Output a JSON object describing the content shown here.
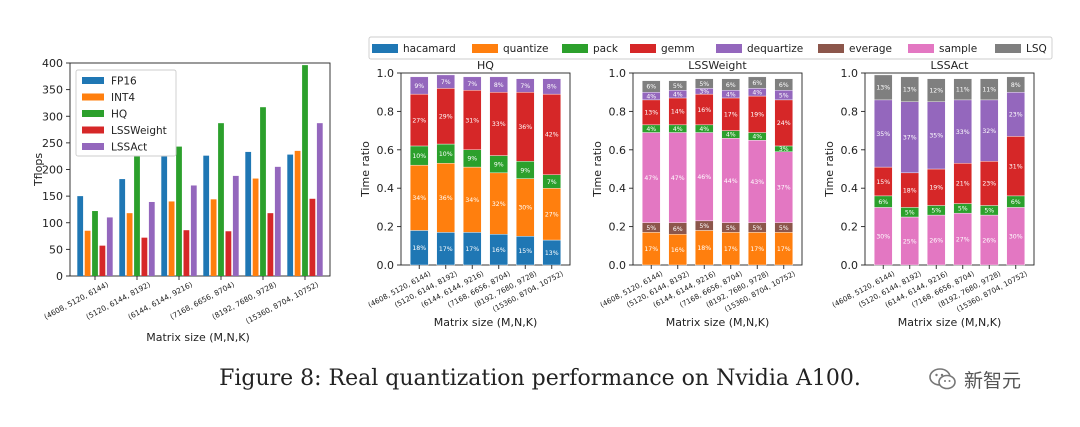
{
  "caption": "Figure 8: Real quantization performance on Nvidia A100.",
  "watermark": {
    "text": "新智元",
    "icon": "wechat-icon"
  },
  "chart_data": [
    {
      "type": "bar",
      "ylabel": "Tflops",
      "xlabel": "Matrix size (M,N,K)",
      "ylim": [
        0,
        400
      ],
      "yticks": [
        "0",
        "50",
        "100",
        "150",
        "200",
        "250",
        "300",
        "350",
        "400"
      ],
      "categories": [
        "(4608, 5120, 6144)",
        "(5120, 6144, 8192)",
        "(6144, 6144, 9216)",
        "(7168, 6656, 8704)",
        "(8192, 7680, 9728)",
        "(15360, 8704, 10752)"
      ],
      "legend_position": "upper-left",
      "series": [
        {
          "name": "FP16",
          "color": "#1f77b4",
          "values": [
            150,
            182,
            236,
            226,
            233,
            228
          ]
        },
        {
          "name": "INT4",
          "color": "#ff7f0e",
          "values": [
            85,
            118,
            140,
            144,
            183,
            235
          ]
        },
        {
          "name": "HQ",
          "color": "#2ca02c",
          "values": [
            122,
            243,
            243,
            287,
            317,
            396
          ]
        },
        {
          "name": "LSSWeight",
          "color": "#d62728",
          "values": [
            57,
            72,
            86,
            84,
            118,
            145
          ]
        },
        {
          "name": "LSSAct",
          "color": "#9467bd",
          "values": [
            110,
            139,
            170,
            188,
            205,
            287
          ]
        }
      ]
    },
    {
      "type": "stacked-bar",
      "legend": [
        {
          "name": "hacamard",
          "color": "#1f77b4"
        },
        {
          "name": "quantize",
          "color": "#ff7f0e"
        },
        {
          "name": "pack",
          "color": "#2ca02c"
        },
        {
          "name": "gemm",
          "color": "#d62728"
        },
        {
          "name": "dequartize",
          "color": "#9467bd"
        },
        {
          "name": "everage",
          "color": "#8c564b"
        },
        {
          "name": "sample",
          "color": "#e377c2"
        },
        {
          "name": "LSQ",
          "color": "#7f7f7f"
        }
      ],
      "ylabel": "Time ratio",
      "xlabel": "Matrix size (M,N,K)",
      "ylim": [
        0,
        1.0
      ],
      "yticks": [
        "0.0",
        "0.2",
        "0.4",
        "0.6",
        "0.8",
        "1.0"
      ],
      "categories": [
        "(4608, 5120, 6144)",
        "(5120, 6144, 8192)",
        "(6144, 6144, 9216)",
        "(7168, 6656, 8704)",
        "(8192, 7680, 9728)",
        "(15360, 8704, 10752)"
      ],
      "panels": [
        {
          "title": "HQ",
          "stacks": [
            [
              {
                "c": "hacamard",
                "v": 0.18,
                "label": "18%"
              },
              {
                "c": "quantize",
                "v": 0.34,
                "label": "34%"
              },
              {
                "c": "pack",
                "v": 0.1,
                "label": "10%"
              },
              {
                "c": "gemm",
                "v": 0.27,
                "label": "27%"
              },
              {
                "c": "dequartize",
                "v": 0.09,
                "label": "9%"
              }
            ],
            [
              {
                "c": "hacamard",
                "v": 0.17,
                "label": "17%"
              },
              {
                "c": "quantize",
                "v": 0.36,
                "label": "36%"
              },
              {
                "c": "pack",
                "v": 0.1,
                "label": "10%"
              },
              {
                "c": "gemm",
                "v": 0.29,
                "label": "29%"
              },
              {
                "c": "dequartize",
                "v": 0.07,
                "label": "7%"
              }
            ],
            [
              {
                "c": "hacamard",
                "v": 0.17,
                "label": "17%"
              },
              {
                "c": "quantize",
                "v": 0.34,
                "label": "34%"
              },
              {
                "c": "pack",
                "v": 0.09,
                "label": "9%"
              },
              {
                "c": "gemm",
                "v": 0.31,
                "label": "31%"
              },
              {
                "c": "dequartize",
                "v": 0.07,
                "label": "7%"
              }
            ],
            [
              {
                "c": "hacamard",
                "v": 0.16,
                "label": "16%"
              },
              {
                "c": "quantize",
                "v": 0.32,
                "label": "32%"
              },
              {
                "c": "pack",
                "v": 0.09,
                "label": "9%"
              },
              {
                "c": "gemm",
                "v": 0.33,
                "label": "33%"
              },
              {
                "c": "dequartize",
                "v": 0.08,
                "label": "8%"
              }
            ],
            [
              {
                "c": "hacamard",
                "v": 0.15,
                "label": "15%"
              },
              {
                "c": "quantize",
                "v": 0.3,
                "label": "30%"
              },
              {
                "c": "pack",
                "v": 0.09,
                "label": "9%"
              },
              {
                "c": "gemm",
                "v": 0.36,
                "label": "36%"
              },
              {
                "c": "dequartize",
                "v": 0.07,
                "label": "7%"
              }
            ],
            [
              {
                "c": "hacamard",
                "v": 0.13,
                "label": "13%"
              },
              {
                "c": "quantize",
                "v": 0.27,
                "label": "27%"
              },
              {
                "c": "pack",
                "v": 0.07,
                "label": "7%"
              },
              {
                "c": "gemm",
                "v": 0.42,
                "label": "42%"
              },
              {
                "c": "dequartize",
                "v": 0.08,
                "label": "8%"
              }
            ]
          ]
        },
        {
          "title": "LSSWeight",
          "stacks": [
            [
              {
                "c": "quantize",
                "v": 0.17,
                "label": "17%"
              },
              {
                "c": "everage",
                "v": 0.05,
                "label": "5%"
              },
              {
                "c": "sample",
                "v": 0.47,
                "label": "47%"
              },
              {
                "c": "pack",
                "v": 0.04,
                "label": "4%"
              },
              {
                "c": "gemm",
                "v": 0.13,
                "label": "13%"
              },
              {
                "c": "dequartize",
                "v": 0.04,
                "label": "4%"
              },
              {
                "c": "LSQ",
                "v": 0.06,
                "label": "6%"
              }
            ],
            [
              {
                "c": "quantize",
                "v": 0.16,
                "label": "16%"
              },
              {
                "c": "everage",
                "v": 0.06,
                "label": "6%"
              },
              {
                "c": "sample",
                "v": 0.47,
                "label": "47%"
              },
              {
                "c": "pack",
                "v": 0.04,
                "label": "4%"
              },
              {
                "c": "gemm",
                "v": 0.14,
                "label": "14%"
              },
              {
                "c": "dequartize",
                "v": 0.04,
                "label": "4%"
              },
              {
                "c": "LSQ",
                "v": 0.05,
                "label": "5%"
              }
            ],
            [
              {
                "c": "quantize",
                "v": 0.18,
                "label": "18%"
              },
              {
                "c": "everage",
                "v": 0.05,
                "label": "5%"
              },
              {
                "c": "sample",
                "v": 0.46,
                "label": "46%"
              },
              {
                "c": "pack",
                "v": 0.04,
                "label": "4%"
              },
              {
                "c": "gemm",
                "v": 0.16,
                "label": "16%"
              },
              {
                "c": "dequartize",
                "v": 0.03,
                "label": "3%"
              },
              {
                "c": "LSQ",
                "v": 0.05,
                "label": "5%"
              }
            ],
            [
              {
                "c": "quantize",
                "v": 0.17,
                "label": "17%"
              },
              {
                "c": "everage",
                "v": 0.05,
                "label": "5%"
              },
              {
                "c": "sample",
                "v": 0.44,
                "label": "44%"
              },
              {
                "c": "pack",
                "v": 0.04,
                "label": "4%"
              },
              {
                "c": "gemm",
                "v": 0.17,
                "label": "17%"
              },
              {
                "c": "dequartize",
                "v": 0.04,
                "label": "4%"
              },
              {
                "c": "LSQ",
                "v": 0.06,
                "label": "6%"
              }
            ],
            [
              {
                "c": "quantize",
                "v": 0.17,
                "label": "17%"
              },
              {
                "c": "everage",
                "v": 0.05,
                "label": "5%"
              },
              {
                "c": "sample",
                "v": 0.43,
                "label": "43%"
              },
              {
                "c": "pack",
                "v": 0.04,
                "label": "4%"
              },
              {
                "c": "gemm",
                "v": 0.19,
                "label": "19%"
              },
              {
                "c": "dequartize",
                "v": 0.04,
                "label": "4%"
              },
              {
                "c": "LSQ",
                "v": 0.06,
                "label": "6%"
              }
            ],
            [
              {
                "c": "quantize",
                "v": 0.17,
                "label": "17%"
              },
              {
                "c": "everage",
                "v": 0.05,
                "label": "5%"
              },
              {
                "c": "sample",
                "v": 0.37,
                "label": "37%"
              },
              {
                "c": "pack",
                "v": 0.03,
                "label": "3%"
              },
              {
                "c": "gemm",
                "v": 0.24,
                "label": "24%"
              },
              {
                "c": "dequartize",
                "v": 0.05,
                "label": "5%"
              },
              {
                "c": "LSQ",
                "v": 0.06,
                "label": "6%"
              }
            ]
          ]
        },
        {
          "title": "LSSAct",
          "stacks": [
            [
              {
                "c": "sample",
                "v": 0.3,
                "label": "30%"
              },
              {
                "c": "pack",
                "v": 0.06,
                "label": "6%"
              },
              {
                "c": "gemm",
                "v": 0.15,
                "label": "15%"
              },
              {
                "c": "dequartize",
                "v": 0.35,
                "label": "35%"
              },
              {
                "c": "LSQ",
                "v": 0.13,
                "label": "13%"
              }
            ],
            [
              {
                "c": "sample",
                "v": 0.25,
                "label": "25%"
              },
              {
                "c": "pack",
                "v": 0.05,
                "label": "5%"
              },
              {
                "c": "gemm",
                "v": 0.18,
                "label": "18%"
              },
              {
                "c": "dequartize",
                "v": 0.37,
                "label": "37%"
              },
              {
                "c": "LSQ",
                "v": 0.13,
                "label": "13%"
              }
            ],
            [
              {
                "c": "sample",
                "v": 0.26,
                "label": "26%"
              },
              {
                "c": "pack",
                "v": 0.05,
                "label": "5%"
              },
              {
                "c": "gemm",
                "v": 0.19,
                "label": "19%"
              },
              {
                "c": "dequartize",
                "v": 0.35,
                "label": "35%"
              },
              {
                "c": "LSQ",
                "v": 0.12,
                "label": "12%"
              }
            ],
            [
              {
                "c": "sample",
                "v": 0.27,
                "label": "27%"
              },
              {
                "c": "pack",
                "v": 0.05,
                "label": "5%"
              },
              {
                "c": "gemm",
                "v": 0.21,
                "label": "21%"
              },
              {
                "c": "dequartize",
                "v": 0.33,
                "label": "33%"
              },
              {
                "c": "LSQ",
                "v": 0.11,
                "label": "11%"
              }
            ],
            [
              {
                "c": "sample",
                "v": 0.26,
                "label": "26%"
              },
              {
                "c": "pack",
                "v": 0.05,
                "label": "5%"
              },
              {
                "c": "gemm",
                "v": 0.23,
                "label": "23%"
              },
              {
                "c": "dequartize",
                "v": 0.32,
                "label": "32%"
              },
              {
                "c": "LSQ",
                "v": 0.11,
                "label": "11%"
              }
            ],
            [
              {
                "c": "sample",
                "v": 0.3,
                "label": "30%"
              },
              {
                "c": "pack",
                "v": 0.06,
                "label": "6%"
              },
              {
                "c": "gemm",
                "v": 0.31,
                "label": "31%"
              },
              {
                "c": "dequartize",
                "v": 0.23,
                "label": "23%"
              },
              {
                "c": "LSQ",
                "v": 0.08,
                "label": "8%"
              }
            ]
          ]
        }
      ]
    }
  ]
}
